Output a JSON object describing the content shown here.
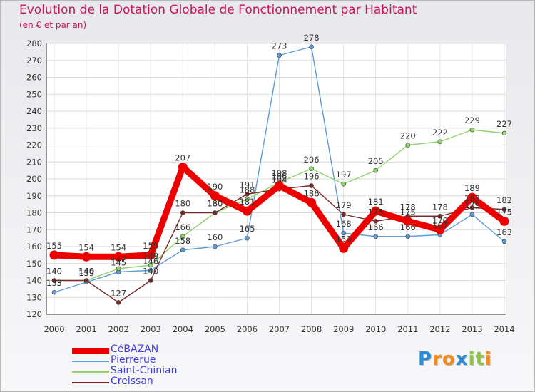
{
  "chart_data": {
    "type": "line",
    "title": "Evolution de la Dotation Globale de Fonctionnement par Habitant",
    "subtitle": "(en € et par an)",
    "xlabel": "",
    "ylabel": "",
    "categories": [
      "2000",
      "2001",
      "2002",
      "2003",
      "2004",
      "2005",
      "2006",
      "2007",
      "2008",
      "2009",
      "2010",
      "2011",
      "2012",
      "2013",
      "2014"
    ],
    "ylim": [
      120,
      280
    ],
    "yticks": [
      120,
      130,
      140,
      150,
      160,
      170,
      180,
      190,
      200,
      210,
      220,
      230,
      240,
      250,
      260,
      270,
      280
    ],
    "grid": true,
    "legend_position": "bottom-left",
    "series": [
      {
        "name": "CéBAZAN",
        "color": "#ee0000",
        "values": [
          155,
          154,
          154,
          155,
          207,
          190,
          181,
          196,
          186,
          159,
          181,
          175,
          170,
          189,
          175
        ]
      },
      {
        "name": "Pierrerue",
        "color": "#5b9bd5",
        "values": [
          133,
          139,
          145,
          146,
          158,
          160,
          165,
          273,
          278,
          168,
          166,
          166,
          167,
          179,
          163
        ]
      },
      {
        "name": "Saint-Chinian",
        "color": "#8fd26a",
        "values": [
          140,
          140,
          147,
          149,
          166,
          180,
          188,
          198,
          206,
          197,
          205,
          220,
          222,
          229,
          227
        ]
      },
      {
        "name": "Creissan",
        "color": "#7a2a2a",
        "values": [
          140,
          140,
          127,
          140,
          180,
          180,
          191,
          194,
          196,
          179,
          175,
          178,
          178,
          183,
          182
        ]
      }
    ]
  },
  "logo": {
    "letters": [
      "P",
      "r",
      "o",
      "x",
      "i",
      "t",
      "i"
    ],
    "colors": [
      "#2b8cd6",
      "#f28a1d",
      "#f28a1d",
      "#2b8cd6",
      "#8cc63f",
      "#8cc63f",
      "#f28a1d"
    ]
  }
}
